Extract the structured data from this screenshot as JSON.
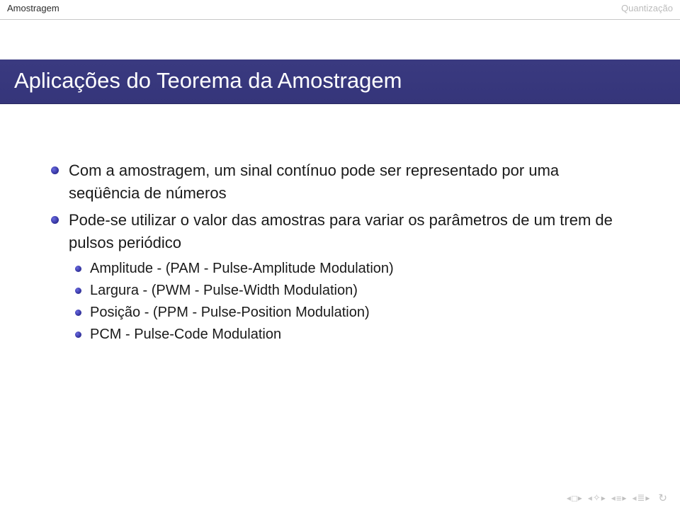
{
  "header": {
    "left": "Amostragem",
    "right": "Quantização"
  },
  "title": "Aplicações do Teorema da Amostragem",
  "bullets": [
    "Com a amostragem, um sinal contínuo pode ser representado por uma seqüência de números",
    "Pode-se utilizar o valor das amostras para variar os parâmetros de um trem de pulsos periódico"
  ],
  "subbullets": [
    "Amplitude - (PAM - Pulse-Amplitude Modulation)",
    "Largura - (PWM - Pulse-Width Modulation)",
    "Posição - (PPM - Pulse-Position Modulation)",
    "PCM - Pulse-Code Modulation"
  ],
  "nav_symbols": [
    "□",
    "✧",
    "≡",
    "≣"
  ]
}
